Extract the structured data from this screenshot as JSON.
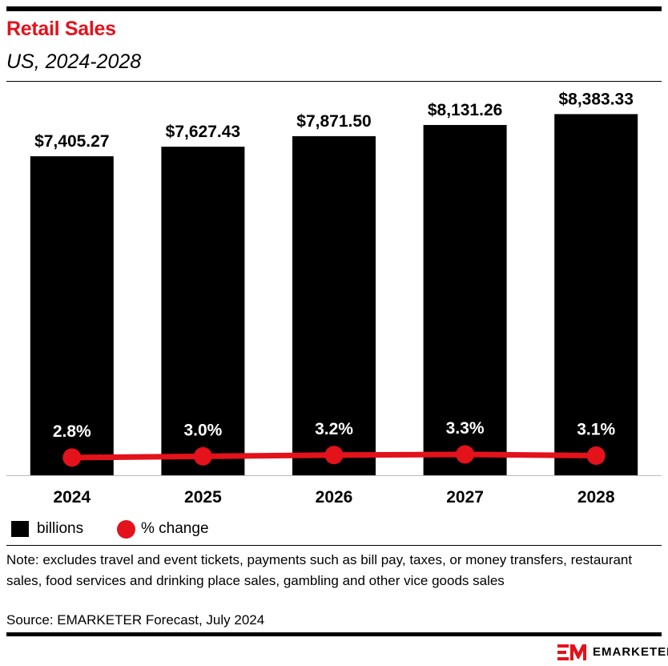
{
  "header": {
    "title": "Retail Sales",
    "subtitle": "US, 2024-2028"
  },
  "chart_data": {
    "type": "bar",
    "categories": [
      "2024",
      "2025",
      "2026",
      "2027",
      "2028"
    ],
    "series": [
      {
        "name": "billions",
        "type": "bar",
        "values": [
          7405.27,
          7627.43,
          7871.5,
          8131.26,
          8383.33
        ],
        "labels": [
          "$7,405.27",
          "$7,627.43",
          "$7,871.50",
          "$8,131.26",
          "$8,383.33"
        ],
        "color": "#000000"
      },
      {
        "name": "% change",
        "type": "line",
        "values": [
          2.8,
          3.0,
          3.2,
          3.3,
          3.1
        ],
        "labels": [
          "2.8%",
          "3.0%",
          "3.2%",
          "3.3%",
          "3.1%"
        ],
        "color": "#e3121b"
      }
    ],
    "ylim": [
      0,
      8800
    ],
    "line_ylim": [
      0,
      60
    ],
    "grid": false,
    "legend_position": "bottom-left"
  },
  "legend": [
    {
      "label": "billions",
      "swatch": "bar",
      "color": "#000000"
    },
    {
      "label": "% change",
      "swatch": "dot",
      "color": "#e3121b"
    }
  ],
  "footer": {
    "note": "Note: excludes travel and event tickets, payments such as bill pay, taxes, or money transfers, restaurant sales, food services and drinking place sales, gambling and other vice goods sales",
    "source": "Source: EMARKETER Forecast, July 2024",
    "brand": "EMARKETER"
  },
  "colors": {
    "accent": "#e3121b",
    "bar": "#000000"
  }
}
